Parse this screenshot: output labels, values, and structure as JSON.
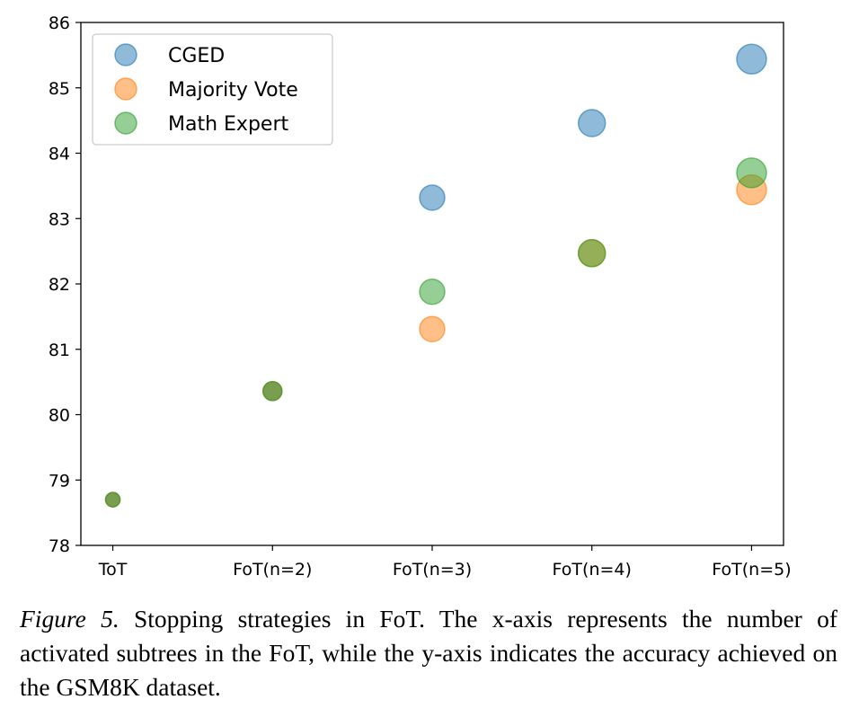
{
  "chart_data": {
    "type": "scatter",
    "title": "",
    "xlabel": "",
    "ylabel": "",
    "categories": [
      "ToT",
      "FoT(n=2)",
      "FoT(n=3)",
      "FoT(n=4)",
      "FoT(n=5)"
    ],
    "ylim": [
      78,
      86
    ],
    "yticks": [
      "78",
      "79",
      "80",
      "81",
      "82",
      "83",
      "84",
      "85",
      "86"
    ],
    "grid": false,
    "legend_position": "top-left",
    "series": [
      {
        "name": "CGED",
        "color": "#1f77b4",
        "values": [
          78.7,
          80.36,
          83.32,
          84.46,
          85.44
        ]
      },
      {
        "name": "Majority Vote",
        "color": "#ff7f0e",
        "values": [
          78.7,
          80.36,
          81.31,
          82.47,
          83.44
        ]
      },
      {
        "name": "Math Expert",
        "color": "#2ca02c",
        "values": [
          78.7,
          80.36,
          81.88,
          82.47,
          83.7
        ]
      }
    ]
  },
  "caption": {
    "label": "Figure 5.",
    "text": "Stopping strategies in FoT. The x-axis represents the number of activated subtrees in the FoT, while the y-axis indicates the accuracy achieved on the GSM8K dataset."
  }
}
